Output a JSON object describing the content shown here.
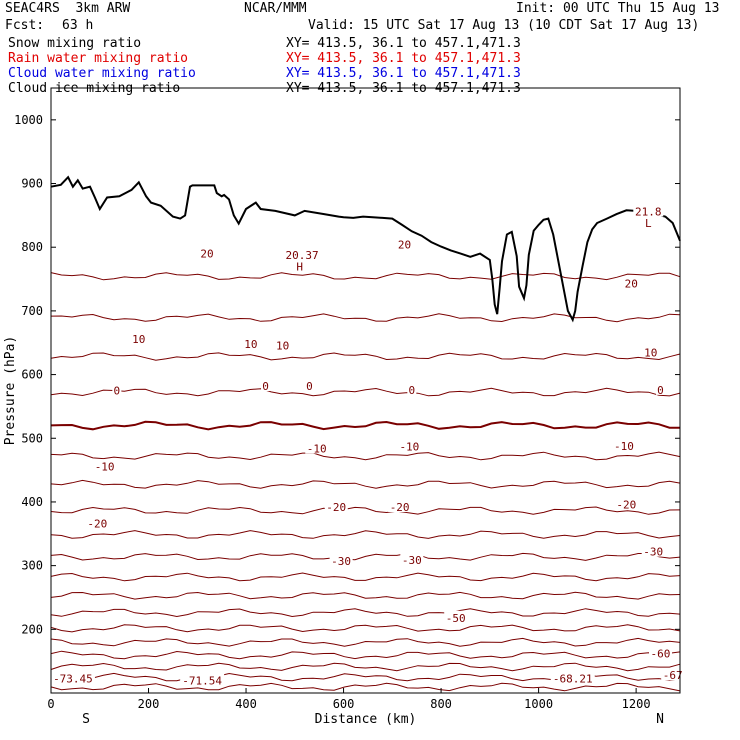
{
  "header": {
    "model": "SEAC4RS  3km ARW",
    "org": "NCAR/MMM",
    "init": "Init: 00 UTC Thu 15 Aug 13",
    "fcst_label": "Fcst:",
    "fcst_value": "63 h",
    "valid": "Valid: 15 UTC Sat 17 Aug 13 (10 CDT Sat 17 Aug 13)",
    "fields": [
      {
        "label": "Snow mixing ratio",
        "xy": "XY= 413.5, 36.1 to 457.1,471.3",
        "color": "#000000"
      },
      {
        "label": "Rain water mixing ratio",
        "xy": "XY= 413.5, 36.1 to 457.1,471.3",
        "color": "#e00000"
      },
      {
        "label": "Cloud water mixing ratio",
        "xy": "XY= 413.5, 36.1 to 457.1,471.3",
        "color": "#0000e0"
      },
      {
        "label": "Cloud ice mixing ratio",
        "xy": "XY= 413.5, 36.1 to 457.1,471.3",
        "color": "#000000"
      }
    ]
  },
  "colors": {
    "contour": "#7a0000",
    "terrain": "#000000",
    "axis": "#000000"
  },
  "chart_data": {
    "type": "line",
    "xlabel": "Distance (km)",
    "ylabel": "Pressure (hPa)",
    "xlim": [
      0,
      1290
    ],
    "ylim": [
      1050,
      100
    ],
    "x_ticks": [
      0,
      200,
      400,
      600,
      800,
      1000,
      1200
    ],
    "y_ticks": [
      200,
      300,
      400,
      500,
      600,
      700,
      800,
      900,
      1000
    ],
    "x_end_labels": {
      "left": "S",
      "right": "N"
    },
    "temperature_contours_C": [
      -70,
      -65,
      -60,
      -55,
      -50,
      -45,
      -40,
      -35,
      -30,
      -25,
      -20,
      -15,
      -10,
      -5,
      0,
      5,
      10,
      15,
      20
    ],
    "contour_labels": [
      {
        "text": "-73.45",
        "x": 45,
        "p": 123
      },
      {
        "text": "-71.54",
        "x": 310,
        "p": 120
      },
      {
        "text": "-68.21",
        "x": 1070,
        "p": 123
      },
      {
        "text": "-67",
        "x": 1275,
        "p": 128
      },
      {
        "text": "-60",
        "x": 1250,
        "p": 162
      },
      {
        "text": "-50",
        "x": 830,
        "p": 218
      },
      {
        "text": "-30",
        "x": 595,
        "p": 307
      },
      {
        "text": "-30",
        "x": 740,
        "p": 309
      },
      {
        "text": "-30",
        "x": 1235,
        "p": 322
      },
      {
        "text": "-20",
        "x": 95,
        "p": 366
      },
      {
        "text": "-20",
        "x": 585,
        "p": 392
      },
      {
        "text": "-20",
        "x": 715,
        "p": 392
      },
      {
        "text": "-20",
        "x": 1180,
        "p": 396
      },
      {
        "text": "-10",
        "x": 110,
        "p": 456
      },
      {
        "text": "-10",
        "x": 545,
        "p": 484
      },
      {
        "text": "-10",
        "x": 735,
        "p": 487
      },
      {
        "text": "-10",
        "x": 1175,
        "p": 488
      },
      {
        "text": "0",
        "x": 135,
        "p": 575
      },
      {
        "text": "0",
        "x": 440,
        "p": 582
      },
      {
        "text": "0",
        "x": 530,
        "p": 582
      },
      {
        "text": "0",
        "x": 740,
        "p": 576
      },
      {
        "text": "0",
        "x": 1250,
        "p": 576
      },
      {
        "text": "10",
        "x": 180,
        "p": 656
      },
      {
        "text": "10",
        "x": 410,
        "p": 648
      },
      {
        "text": "10",
        "x": 475,
        "p": 646
      },
      {
        "text": "10",
        "x": 1230,
        "p": 635
      },
      {
        "text": "20",
        "x": 320,
        "p": 790
      },
      {
        "text": "20",
        "x": 725,
        "p": 804
      },
      {
        "text": "20",
        "x": 1190,
        "p": 743
      },
      {
        "text": "H",
        "x": 510,
        "p": 770
      },
      {
        "text": "20.37",
        "x": 515,
        "p": 788
      },
      {
        "text": "L",
        "x": 1225,
        "p": 838
      },
      {
        "text": "21.8",
        "x": 1225,
        "p": 856
      }
    ],
    "terrain_surface": {
      "x": [
        0,
        20,
        35,
        45,
        55,
        65,
        80,
        90,
        100,
        115,
        140,
        165,
        180,
        195,
        205,
        225,
        250,
        265,
        275,
        285,
        290,
        310,
        330,
        335,
        340,
        350,
        355,
        365,
        375,
        385,
        400,
        420,
        430,
        460,
        500,
        520,
        560,
        590,
        600,
        620,
        640,
        660,
        680,
        700,
        720,
        740,
        760,
        780,
        800,
        820,
        840,
        860,
        880,
        900,
        905,
        910,
        915,
        920,
        925,
        935,
        945,
        955,
        960,
        970,
        975,
        980,
        990,
        1000,
        1010,
        1020,
        1030,
        1040,
        1050,
        1060,
        1070,
        1075,
        1080,
        1090,
        1100,
        1110,
        1120,
        1140,
        1160,
        1180,
        1200,
        1220,
        1240,
        1260,
        1275,
        1290
      ],
      "p": [
        895,
        898,
        910,
        895,
        905,
        892,
        895,
        878,
        860,
        878,
        880,
        890,
        902,
        880,
        870,
        865,
        848,
        845,
        850,
        895,
        897,
        897,
        897,
        897,
        885,
        880,
        882,
        875,
        850,
        837,
        860,
        870,
        860,
        857,
        850,
        857,
        852,
        848,
        847,
        846,
        848,
        847,
        846,
        845,
        835,
        825,
        818,
        808,
        801,
        795,
        790,
        785,
        790,
        780,
        750,
        710,
        695,
        735,
        778,
        820,
        824,
        786,
        738,
        720,
        740,
        788,
        826,
        835,
        843,
        845,
        820,
        780,
        740,
        700,
        686,
        700,
        730,
        770,
        808,
        828,
        838,
        845,
        852,
        858,
        857,
        854,
        852,
        848,
        838,
        810
      ]
    }
  }
}
